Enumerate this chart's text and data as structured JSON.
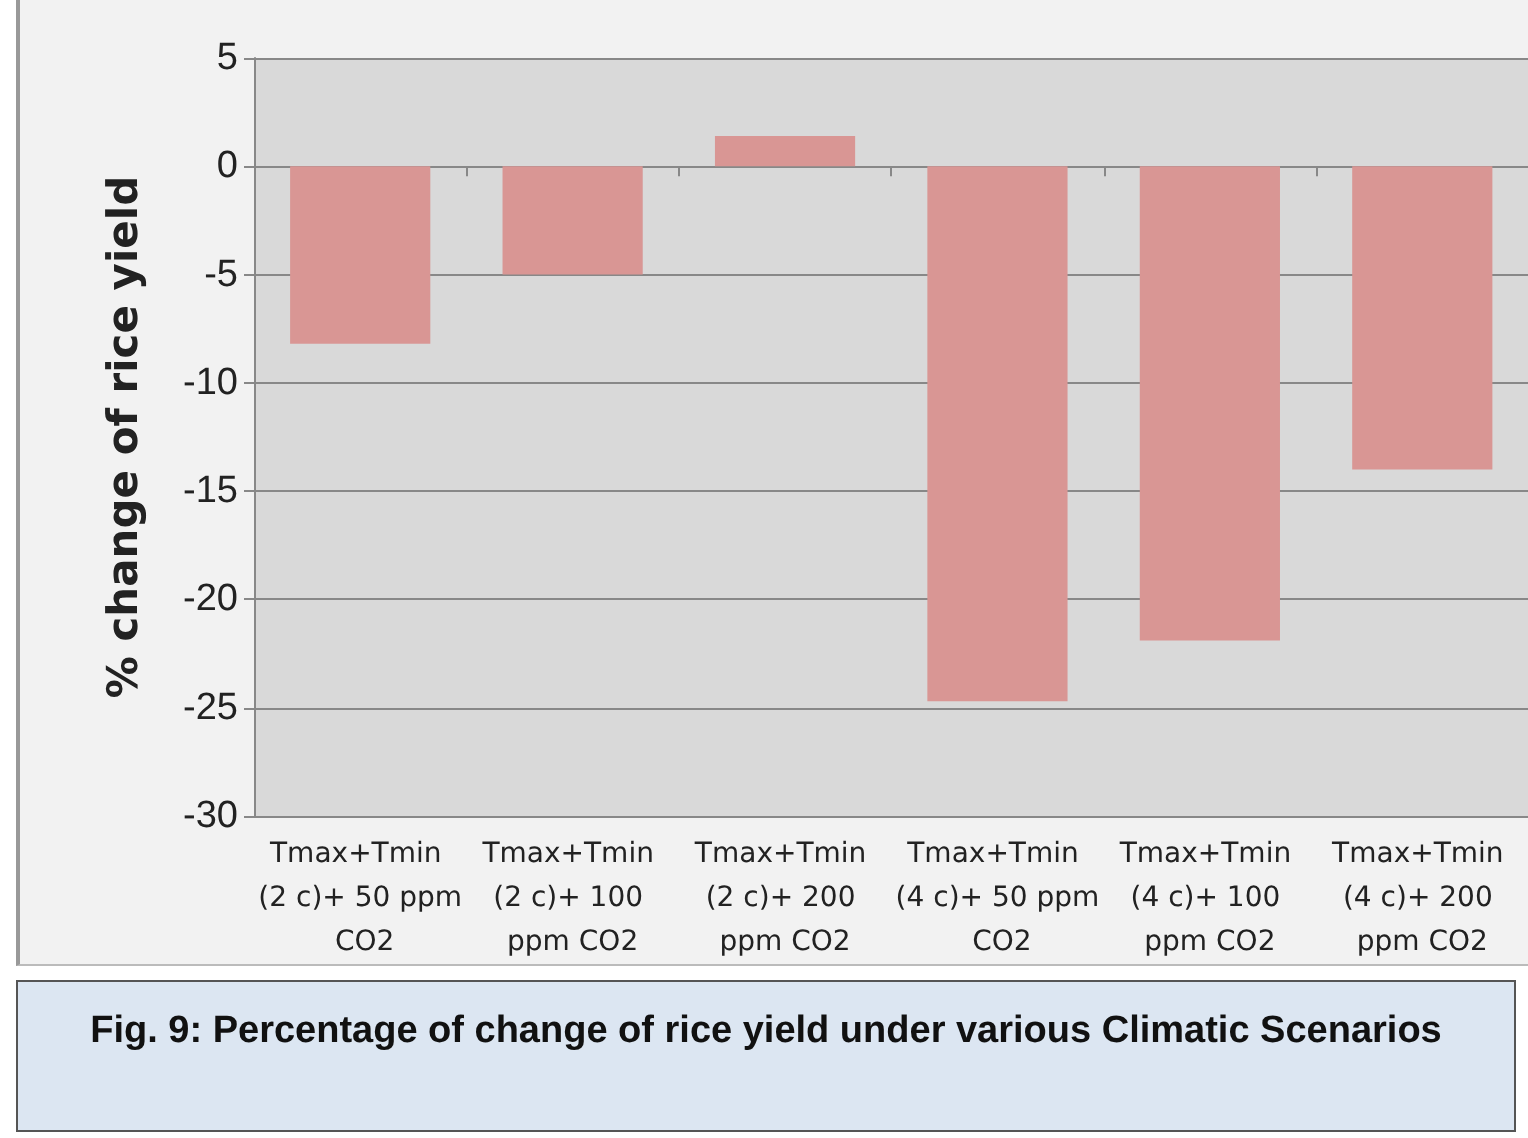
{
  "chart_data": {
    "type": "bar",
    "ylabel": "% change of rice yield",
    "categories": [
      "Tmax+Tmin (2 c)+ 50 ppm CO2",
      "Tmax+Tmin (2 c)+ 100 ppm CO2",
      "Tmax+Tmin (2 c)+ 200 ppm CO2",
      "Tmax+Tmin (4 c)+ 50 ppm CO2",
      "Tmax+Tmin (4 c)+ 100 ppm CO2",
      "Tmax+Tmin (4 c)+ 200 ppm CO2"
    ],
    "values": [
      -8.2,
      -5.0,
      1.4,
      -24.7,
      -21.9,
      -14.0
    ],
    "color": "#d99694",
    "ylim": [
      -30,
      5
    ],
    "yticks": [
      -30,
      -25,
      -20,
      -15,
      -10,
      -5,
      0,
      5
    ],
    "grid": "y",
    "annotations": [
      "Fig. 9: Percentage of change of rice yield under various Climatic Scenarios"
    ]
  }
}
